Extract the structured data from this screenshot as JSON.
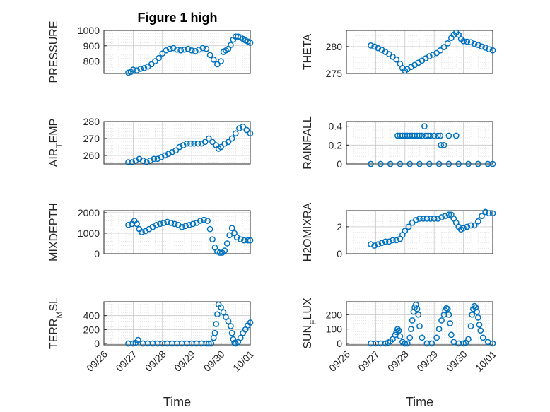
{
  "figure_title": "Figure 1 high",
  "colors": {
    "marker": "#0072BD",
    "grid": "#d0d0d0",
    "axis": "#262626"
  },
  "chart_data": [
    {
      "id": "pressure",
      "type": "scatter",
      "ylabel": "PRESSURE",
      "ylabel_sub": "",
      "ylim": [
        720,
        1000
      ],
      "yticks": [
        800,
        900,
        1000
      ],
      "xticks_visible": false,
      "x": [
        "09/26 20:00",
        "09/26 22:00",
        "09/27 00:00",
        "09/27 03:00",
        "09/27 06:00",
        "09/27 09:00",
        "09/27 12:00",
        "09/27 15:00",
        "09/27 18:00",
        "09/27 21:00",
        "09/28 00:00",
        "09/28 03:00",
        "09/28 06:00",
        "09/28 09:00",
        "09/28 12:00",
        "09/28 15:00",
        "09/28 18:00",
        "09/28 21:00",
        "09/29 00:00",
        "09/29 03:00",
        "09/29 06:00",
        "09/29 09:00",
        "09/29 12:00",
        "09/29 15:00",
        "09/29 18:00",
        "09/29 21:00",
        "09/30 00:00",
        "09/30 02:00",
        "09/30 04:00",
        "09/30 06:00",
        "09/30 08:00",
        "09/30 10:00",
        "09/30 12:00",
        "09/30 14:00",
        "09/30 16:00",
        "09/30 18:00",
        "09/30 20:00",
        "09/30 22:00",
        "10/01 00:00"
      ],
      "values": [
        725,
        730,
        745,
        740,
        750,
        755,
        765,
        780,
        800,
        820,
        850,
        870,
        880,
        885,
        875,
        870,
        875,
        880,
        870,
        865,
        875,
        885,
        880,
        840,
        810,
        780,
        800,
        860,
        870,
        880,
        905,
        940,
        960,
        960,
        955,
        945,
        935,
        928,
        920
      ]
    },
    {
      "id": "theta",
      "type": "scatter",
      "ylabel": "THETA",
      "ylabel_sub": "",
      "ylim": [
        275,
        283
      ],
      "yticks": [
        275,
        280
      ],
      "xticks_visible": false,
      "x": [
        "09/26 20:00",
        "09/26 23:00",
        "09/27 02:00",
        "09/27 05:00",
        "09/27 08:00",
        "09/27 11:00",
        "09/27 14:00",
        "09/27 17:00",
        "09/27 20:00",
        "09/27 22:00",
        "09/28 00:00",
        "09/28 02:00",
        "09/28 05:00",
        "09/28 08:00",
        "09/28 11:00",
        "09/28 14:00",
        "09/28 17:00",
        "09/28 20:00",
        "09/28 23:00",
        "09/29 02:00",
        "09/29 05:00",
        "09/29 08:00",
        "09/29 11:00",
        "09/29 14:00",
        "09/29 16:00",
        "09/29 18:00",
        "09/29 20:00",
        "09/29 22:00",
        "09/30 00:00",
        "09/30 03:00",
        "09/30 06:00",
        "09/30 09:00",
        "09/30 12:00",
        "09/30 15:00",
        "09/30 18:00",
        "09/30 21:00",
        "10/01 00:00"
      ],
      "values": [
        280.2,
        280.0,
        279.7,
        279.4,
        279.0,
        278.6,
        278.1,
        277.6,
        276.8,
        276.0,
        275.5,
        275.8,
        276.2,
        276.6,
        277.0,
        277.4,
        277.8,
        278.2,
        278.5,
        278.8,
        279.3,
        279.9,
        280.6,
        281.6,
        282.2,
        282.6,
        282.2,
        281.4,
        281.0,
        280.9,
        280.8,
        280.5,
        280.3,
        280.0,
        279.8,
        279.5,
        279.3
      ]
    },
    {
      "id": "air_temp",
      "type": "scatter",
      "ylabel": "AIR",
      "ylabel_sub": "T",
      "ylabel_after": "EMP",
      "ylim": [
        255,
        280
      ],
      "yticks": [
        260,
        270,
        280
      ],
      "xticks_visible": false,
      "x": [
        "09/26 20:00",
        "09/26 23:00",
        "09/27 02:00",
        "09/27 05:00",
        "09/27 08:00",
        "09/27 11:00",
        "09/27 14:00",
        "09/27 17:00",
        "09/27 20:00",
        "09/27 23:00",
        "09/28 02:00",
        "09/28 05:00",
        "09/28 08:00",
        "09/28 11:00",
        "09/28 14:00",
        "09/28 17:00",
        "09/28 20:00",
        "09/28 23:00",
        "09/29 02:00",
        "09/29 05:00",
        "09/29 08:00",
        "09/29 11:00",
        "09/29 14:00",
        "09/29 17:00",
        "09/29 20:00",
        "09/29 22:00",
        "09/30 00:00",
        "09/30 03:00",
        "09/30 06:00",
        "09/30 09:00",
        "09/30 12:00",
        "09/30 15:00",
        "09/30 18:00",
        "09/30 21:00",
        "10/01 00:00"
      ],
      "values": [
        256,
        256,
        257,
        258,
        257,
        256,
        257,
        258,
        258,
        259,
        260,
        261,
        262,
        263,
        265,
        266,
        267,
        267,
        267,
        267,
        267,
        268,
        270,
        268,
        266,
        264,
        265,
        267,
        268,
        270,
        273,
        276,
        277,
        275,
        273
      ]
    },
    {
      "id": "rainfall",
      "type": "scatter",
      "ylabel": "RAINFALL",
      "ylabel_sub": "",
      "ylim": [
        0,
        0.45
      ],
      "yticks": [
        0,
        0.2,
        0.4
      ],
      "ytick_labels": [
        "0",
        "0.2",
        "0.4"
      ],
      "xticks_visible": false,
      "x": [
        "09/26 20:00",
        "09/27 04:00",
        "09/27 12:00",
        "09/27 20:00",
        "09/28 04:00",
        "09/28 12:00",
        "09/28 20:00",
        "09/29 04:00",
        "09/29 12:00",
        "09/29 20:00",
        "09/30 04:00",
        "09/30 12:00",
        "09/30 20:00",
        "10/01 00:00",
        "09/27 18:00",
        "09/27 20:00",
        "09/27 22:00",
        "09/28 00:00",
        "09/28 02:00",
        "09/28 04:00",
        "09/28 06:00",
        "09/28 08:00",
        "09/28 10:00",
        "09/28 12:00",
        "09/28 14:00",
        "09/28 17:00",
        "09/28 19:00",
        "09/28 21:00",
        "09/29 00:00",
        "09/29 03:00",
        "09/29 05:00",
        "09/29 12:00",
        "09/29 18:00",
        "09/28 16:00",
        "09/29 05:30",
        "09/29 08:00"
      ],
      "values": [
        0,
        0,
        0,
        0,
        0,
        0,
        0,
        0,
        0,
        0,
        0,
        0,
        0,
        0,
        0.3,
        0.3,
        0.3,
        0.3,
        0.3,
        0.3,
        0.3,
        0.3,
        0.3,
        0.3,
        0.3,
        0.3,
        0.3,
        0.3,
        0.3,
        0.3,
        0.3,
        0.3,
        0.3,
        0.4,
        0.2,
        0.2
      ]
    },
    {
      "id": "mixdepth",
      "type": "scatter",
      "ylabel": "MIXDEPTH",
      "ylabel_sub": "",
      "ylim": [
        0,
        2100
      ],
      "yticks": [
        0,
        1000,
        2000
      ],
      "xticks_visible": false,
      "x": [
        "09/26 20:00",
        "09/26 23:00",
        "09/27 01:00",
        "09/27 03:00",
        "09/27 05:00",
        "09/27 07:00",
        "09/27 10:00",
        "09/27 13:00",
        "09/27 16:00",
        "09/27 19:00",
        "09/27 22:00",
        "09/28 01:00",
        "09/28 04:00",
        "09/28 07:00",
        "09/28 10:00",
        "09/28 13:00",
        "09/28 16:00",
        "09/28 19:00",
        "09/28 22:00",
        "09/29 01:00",
        "09/29 04:00",
        "09/29 07:00",
        "09/29 10:00",
        "09/29 13:00",
        "09/29 15:00",
        "09/29 17:00",
        "09/29 19:00",
        "09/29 21:00",
        "09/29 23:00",
        "09/30 01:00",
        "09/30 03:00",
        "09/30 05:00",
        "09/30 07:00",
        "09/30 09:00",
        "09/30 11:00",
        "09/30 13:00",
        "09/30 16:00",
        "09/30 19:00",
        "09/30 22:00",
        "10/01 00:00"
      ],
      "values": [
        1400,
        1450,
        1600,
        1450,
        1200,
        1050,
        1100,
        1200,
        1300,
        1400,
        1450,
        1500,
        1550,
        1500,
        1450,
        1400,
        1300,
        1350,
        1400,
        1450,
        1500,
        1600,
        1650,
        1600,
        1200,
        700,
        300,
        100,
        50,
        50,
        150,
        500,
        900,
        1250,
        1000,
        800,
        700,
        650,
        650,
        650
      ]
    },
    {
      "id": "h2omixra",
      "type": "scatter",
      "ylabel": "H2OMIXRA",
      "ylabel_sub": "",
      "ylim": [
        0,
        3.2
      ],
      "yticks": [
        0,
        2
      ],
      "xticks_visible": false,
      "x": [
        "09/26 20:00",
        "09/26 23:00",
        "09/27 02:00",
        "09/27 05:00",
        "09/27 08:00",
        "09/27 11:00",
        "09/27 14:00",
        "09/27 17:00",
        "09/27 20:00",
        "09/27 22:00",
        "09/28 00:00",
        "09/28 03:00",
        "09/28 06:00",
        "09/28 09:00",
        "09/28 12:00",
        "09/28 15:00",
        "09/28 18:00",
        "09/28 21:00",
        "09/29 00:00",
        "09/29 03:00",
        "09/29 06:00",
        "09/29 09:00",
        "09/29 12:00",
        "09/29 14:00",
        "09/29 16:00",
        "09/29 18:00",
        "09/29 20:00",
        "09/29 22:00",
        "09/30 00:00",
        "09/30 03:00",
        "09/30 06:00",
        "09/30 09:00",
        "09/30 12:00",
        "09/30 15:00",
        "09/30 18:00",
        "09/30 21:00",
        "10/01 00:00"
      ],
      "values": [
        0.7,
        0.6,
        0.7,
        0.8,
        0.9,
        0.9,
        1.0,
        1.0,
        1.1,
        1.4,
        1.7,
        2.0,
        2.3,
        2.5,
        2.6,
        2.6,
        2.6,
        2.6,
        2.6,
        2.6,
        2.7,
        2.8,
        2.9,
        2.9,
        2.6,
        2.3,
        2.0,
        1.8,
        1.9,
        2.0,
        2.1,
        2.1,
        2.4,
        2.8,
        3.1,
        3.0,
        3.0
      ]
    },
    {
      "id": "terr_msl",
      "type": "scatter",
      "ylabel": "TERR",
      "ylabel_sub": "M",
      "ylabel_after": "SL",
      "ylim": [
        -20,
        600
      ],
      "yticks": [
        0,
        200,
        400
      ],
      "xticks_visible": true,
      "xticks": [
        "09/26",
        "09/27",
        "09/28",
        "09/29",
        "09/30",
        "10/01"
      ],
      "xlabel": "Time",
      "x": [
        "09/26 20:00",
        "09/27 00:00",
        "09/27 02:00",
        "09/27 04:00",
        "09/27 08:00",
        "09/27 12:00",
        "09/27 16:00",
        "09/27 20:00",
        "09/28 00:00",
        "09/28 04:00",
        "09/28 08:00",
        "09/28 12:00",
        "09/28 16:00",
        "09/28 20:00",
        "09/29 00:00",
        "09/29 04:00",
        "09/29 08:00",
        "09/29 12:00",
        "09/29 14:00",
        "09/29 16:00",
        "09/29 18:00",
        "09/29 19:00",
        "09/29 20:00",
        "09/29 21:00",
        "09/29 22:00",
        "09/30 00:00",
        "09/30 02:00",
        "09/30 04:00",
        "09/30 06:00",
        "09/30 08:00",
        "09/30 09:00",
        "09/30 10:00",
        "09/30 11:00",
        "09/30 12:00",
        "09/30 14:00",
        "09/30 16:00",
        "09/30 18:00",
        "09/30 20:00",
        "09/30 22:00",
        "10/01 00:00"
      ],
      "values": [
        0,
        0,
        10,
        50,
        0,
        0,
        0,
        0,
        0,
        0,
        0,
        0,
        0,
        0,
        0,
        0,
        0,
        0,
        0,
        0,
        80,
        150,
        280,
        420,
        560,
        520,
        450,
        380,
        320,
        250,
        150,
        60,
        10,
        0,
        20,
        80,
        150,
        200,
        260,
        300
      ]
    },
    {
      "id": "sun_flux",
      "type": "scatter",
      "ylabel": "SUN",
      "ylabel_sub": "F",
      "ylabel_after": "LUX",
      "ylim": [
        -10,
        290
      ],
      "yticks": [
        0,
        100,
        200
      ],
      "xticks_visible": true,
      "xticks": [
        "09/26",
        "09/27",
        "09/28",
        "09/29",
        "09/30",
        "10/01"
      ],
      "xlabel": "Time",
      "x": [
        "09/26 20:00",
        "09/27 00:00",
        "09/27 04:00",
        "09/27 08:00",
        "09/27 10:00",
        "09/27 12:00",
        "09/27 14:00",
        "09/27 16:00",
        "09/27 17:00",
        "09/27 18:00",
        "09/27 19:00",
        "09/27 20:00",
        "09/27 22:00",
        "09/28 00:00",
        "09/28 02:00",
        "09/28 04:00",
        "09/28 05:00",
        "09/28 06:00",
        "09/28 07:00",
        "09/28 08:00",
        "09/28 09:00",
        "09/28 10:00",
        "09/28 11:00",
        "09/28 12:00",
        "09/28 14:00",
        "09/28 18:00",
        "09/28 22:00",
        "09/29 02:00",
        "09/29 04:00",
        "09/29 06:00",
        "09/29 08:00",
        "09/29 09:00",
        "09/29 10:00",
        "09/29 11:00",
        "09/29 12:00",
        "09/29 13:00",
        "09/29 14:00",
        "09/29 16:00",
        "09/29 20:00",
        "09/30 00:00",
        "09/30 02:00",
        "09/30 04:00",
        "09/30 06:00",
        "09/30 07:00",
        "09/30 08:00",
        "09/30 09:00",
        "09/30 10:00",
        "09/30 11:00",
        "09/30 12:00",
        "09/30 13:00",
        "09/30 14:00",
        "09/30 16:00",
        "09/30 20:00",
        "10/01 00:00"
      ],
      "values": [
        0,
        0,
        0,
        0,
        5,
        15,
        30,
        60,
        80,
        100,
        90,
        50,
        10,
        0,
        0,
        40,
        100,
        160,
        220,
        250,
        270,
        240,
        200,
        120,
        40,
        0,
        0,
        40,
        100,
        160,
        200,
        230,
        245,
        240,
        200,
        140,
        60,
        10,
        0,
        0,
        5,
        30,
        120,
        200,
        240,
        260,
        250,
        220,
        180,
        130,
        90,
        40,
        10,
        0
      ]
    }
  ]
}
